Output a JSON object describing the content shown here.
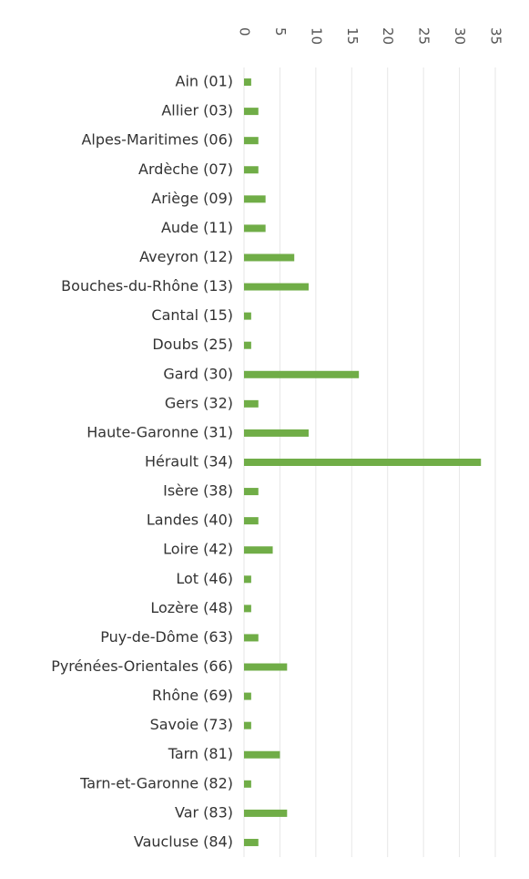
{
  "chart_data": {
    "type": "hbar",
    "categories": [
      "Ain (01)",
      "Allier (03)",
      "Alpes-Maritimes (06)",
      "Ardèche (07)",
      "Ariège (09)",
      "Aude (11)",
      "Aveyron (12)",
      "Bouches-du-Rhône (13)",
      "Cantal (15)",
      "Doubs (25)",
      "Gard (30)",
      "Gers (32)",
      "Haute-Garonne (31)",
      "Hérault (34)",
      "Isère (38)",
      "Landes (40)",
      "Loire (42)",
      "Lot (46)",
      "Lozère (48)",
      "Puy-de-Dôme (63)",
      "Pyrénées-Orientales (66)",
      "Rhône (69)",
      "Savoie (73)",
      "Tarn (81)",
      "Tarn-et-Garonne (82)",
      "Var (83)",
      "Vaucluse (84)"
    ],
    "values": [
      1,
      2,
      2,
      2,
      3,
      3,
      7,
      9,
      1,
      1,
      16,
      2,
      9,
      33,
      2,
      2,
      4,
      1,
      1,
      2,
      6,
      1,
      1,
      5,
      1,
      6,
      2
    ],
    "color": "#70ad47",
    "xlim": [
      0,
      35
    ],
    "xticks": [
      0,
      5,
      10,
      15,
      20,
      25,
      30,
      35
    ],
    "grid": true
  }
}
